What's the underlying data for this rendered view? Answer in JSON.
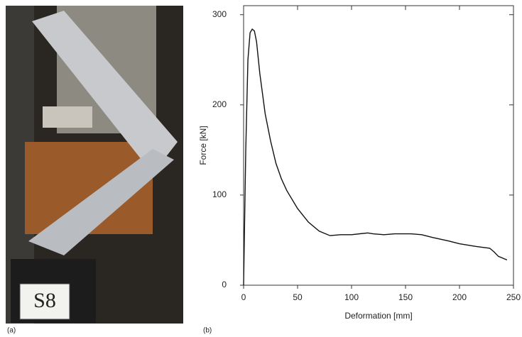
{
  "panel_a": {
    "label": "(a)",
    "sign": "S8"
  },
  "chart_data": {
    "type": "line",
    "panel_label": "(b)",
    "x_label": "Deformation [mm]",
    "y_label": "Force [kN]",
    "xlim": [
      0,
      250
    ],
    "ylim": [
      0,
      310
    ],
    "xticks": [
      0,
      50,
      100,
      150,
      200,
      250
    ],
    "yticks": [
      0,
      100,
      200,
      300
    ],
    "series": [
      {
        "color": "#111111",
        "x": [
          0,
          2,
          4,
          6,
          8,
          10,
          12,
          15,
          20,
          25,
          30,
          35,
          40,
          50,
          60,
          70,
          80,
          90,
          100,
          115,
          120,
          130,
          140,
          155,
          165,
          175,
          190,
          200,
          215,
          228,
          232,
          236,
          244
        ],
        "values": [
          0,
          150,
          250,
          280,
          284,
          282,
          270,
          235,
          190,
          160,
          135,
          118,
          105,
          85,
          70,
          60,
          55,
          56,
          56,
          58,
          57,
          56,
          57,
          57,
          56,
          53,
          49,
          46,
          43,
          41,
          37,
          32,
          28
        ]
      }
    ]
  }
}
